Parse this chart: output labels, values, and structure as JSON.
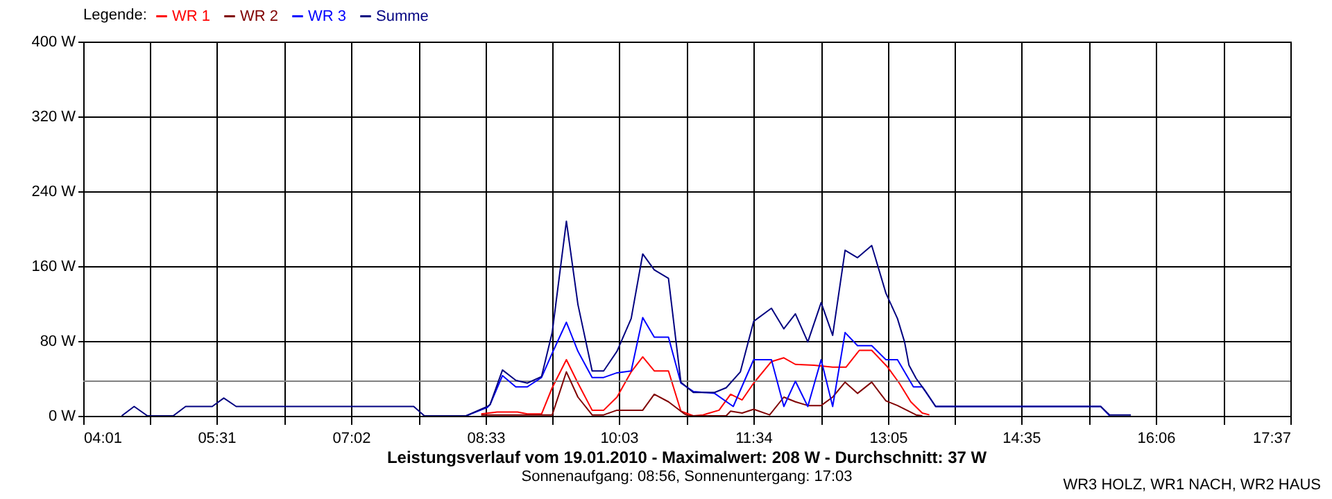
{
  "chart_data": {
    "type": "line",
    "title": "Leistungsverlauf vom 19.01.2010 - Maximalwert: 208 W - Durchschnitt: 37 W",
    "subtitle": "Sonnenaufgang: 08:56, Sonnenuntergang: 17:03",
    "annotations": [
      "WR3 HOLZ, WR1 NACH, WR2 HAUS"
    ],
    "legend_title": "Legende:",
    "legend": "top left",
    "grid": true,
    "xlim": [
      4.0167,
      17.6167
    ],
    "xticks": [
      {
        "value": 4.0167,
        "label": "04:01"
      },
      {
        "value": 4.7722,
        "label": null
      },
      {
        "value": 5.5167,
        "label": "05:31"
      },
      {
        "value": 6.2833,
        "label": null
      },
      {
        "value": 7.0333,
        "label": "07:02"
      },
      {
        "value": 7.7944,
        "label": null
      },
      {
        "value": 8.55,
        "label": "08:33"
      },
      {
        "value": 9.3056,
        "label": null
      },
      {
        "value": 10.05,
        "label": "10:03"
      },
      {
        "value": 10.8167,
        "label": null
      },
      {
        "value": 11.5667,
        "label": "11:34"
      },
      {
        "value": 12.3278,
        "label": null
      },
      {
        "value": 13.0833,
        "label": "13:05"
      },
      {
        "value": 13.8389,
        "label": null
      },
      {
        "value": 14.5833,
        "label": "14:35"
      },
      {
        "value": 15.35,
        "label": null
      },
      {
        "value": 16.1,
        "label": "16:06"
      },
      {
        "value": 16.8611,
        "label": null
      },
      {
        "value": 17.6167,
        "label": "17:37"
      }
    ],
    "ylim": [
      0,
      400
    ],
    "yticks": [
      {
        "value": 0,
        "label": "0 W"
      },
      {
        "value": 80,
        "label": "80 W"
      },
      {
        "value": 160,
        "label": "160 W"
      },
      {
        "value": 240,
        "label": "240 W"
      },
      {
        "value": 320,
        "label": "320 W"
      },
      {
        "value": 400,
        "label": "400 W"
      }
    ],
    "ref_lines": [
      {
        "axis": "y",
        "value": 37,
        "color": "#808080"
      }
    ],
    "series": [
      {
        "name": "WR 1",
        "color": "#ff0000",
        "x": [
          8.5,
          8.68,
          8.91,
          9.02,
          9.18,
          9.3,
          9.46,
          9.59,
          9.75,
          9.88,
          10.03,
          10.19,
          10.32,
          10.45,
          10.61,
          10.75,
          10.89,
          11.0,
          11.18,
          11.31,
          11.44,
          11.57,
          11.77,
          11.91,
          12.04,
          12.25,
          12.46,
          12.61,
          12.76,
          12.9,
          13.08,
          13.21,
          13.34,
          13.47,
          13.55
        ],
        "values": [
          2,
          4,
          4,
          2,
          2,
          30,
          60,
          35,
          6,
          6,
          20,
          47,
          63,
          48,
          48,
          5,
          0,
          1,
          6,
          23,
          17,
          35,
          58,
          62,
          55,
          54,
          52,
          52,
          70,
          70,
          52,
          35,
          15,
          3,
          1
        ]
      },
      {
        "name": "WR 2",
        "color": "#800000",
        "x": [
          8.5,
          9.18,
          9.3,
          9.46,
          9.59,
          9.75,
          9.88,
          10.03,
          10.32,
          10.45,
          10.61,
          10.79,
          10.84,
          11.26,
          11.31,
          11.44,
          11.57,
          11.75,
          11.91,
          12.04,
          12.18,
          12.33,
          12.46,
          12.6,
          12.74,
          12.9,
          13.06,
          13.19,
          13.4,
          13.47
        ],
        "values": [
          1,
          1,
          1,
          47,
          20,
          1,
          1,
          6,
          6,
          23,
          15,
          2,
          0,
          0,
          5,
          3,
          7,
          1,
          20,
          15,
          11,
          11,
          20,
          36,
          24,
          36,
          16,
          11,
          1,
          0
        ]
      },
      {
        "name": "WR 3",
        "color": "#0000ff",
        "x": [
          8.33,
          8.57,
          8.6,
          8.74,
          8.89,
          9.02,
          9.18,
          9.3,
          9.46,
          9.59,
          9.75,
          9.88,
          10.03,
          10.19,
          10.32,
          10.45,
          10.61,
          10.75,
          10.89,
          11.13,
          11.34,
          11.57,
          11.77,
          11.91,
          12.04,
          12.18,
          12.33,
          12.46,
          12.6,
          12.74,
          12.9,
          13.06,
          13.19,
          13.37,
          13.47,
          13.62,
          15.48,
          15.58
        ],
        "values": [
          0,
          9,
          12,
          43,
          31,
          31,
          41,
          67,
          100,
          69,
          41,
          41,
          46,
          48,
          105,
          84,
          84,
          35,
          26,
          24,
          10,
          60,
          60,
          10,
          37,
          10,
          60,
          10,
          89,
          75,
          75,
          60,
          60,
          31,
          31,
          10,
          10,
          0
        ]
      },
      {
        "name": "Summe",
        "color": "#000080",
        "x": [
          4.45,
          4.59,
          4.74,
          5.03,
          5.17,
          5.47,
          5.6,
          5.74,
          7.74,
          7.86,
          8.33,
          8.57,
          8.6,
          8.74,
          8.89,
          9.02,
          9.18,
          9.3,
          9.46,
          9.59,
          9.75,
          9.88,
          10.03,
          10.19,
          10.32,
          10.45,
          10.61,
          10.75,
          10.89,
          11.13,
          11.26,
          11.42,
          11.57,
          11.77,
          11.91,
          12.04,
          12.18,
          12.33,
          12.46,
          12.6,
          12.74,
          12.9,
          13.06,
          13.19,
          13.27,
          13.32,
          13.4,
          13.5,
          13.62,
          15.48,
          15.58,
          15.82
        ],
        "values": [
          0,
          10,
          0,
          0,
          10,
          10,
          19,
          10,
          10,
          0,
          0,
          10,
          12,
          49,
          38,
          35,
          42,
          89,
          208,
          119,
          48,
          48,
          69,
          104,
          173,
          156,
          147,
          36,
          25,
          25,
          30,
          47,
          101,
          115,
          93,
          109,
          79,
          121,
          86,
          177,
          169,
          182,
          131,
          104,
          79,
          54,
          40,
          27,
          10,
          10,
          1,
          1
        ]
      }
    ]
  }
}
